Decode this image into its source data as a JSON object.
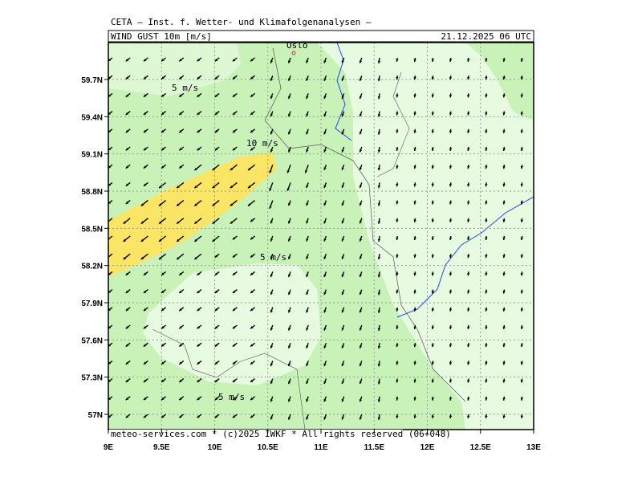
{
  "header": {
    "institute": "CETA – Inst. f. Wetter- und Klimafolgenanalysen –",
    "title": "WIND GUST 10m [m/s]",
    "datetime": "21.12.2025 06 UTC"
  },
  "map": {
    "place": "Oslo",
    "contour_labels": [
      "5 m/s",
      "10 m/s",
      "5 m/s",
      "5 m/s"
    ],
    "x_ticks": [
      "9E",
      "9.5E",
      "10E",
      "10.5E",
      "11E",
      "11.5E",
      "12E",
      "12.5E",
      "13E"
    ],
    "y_ticks": [
      "57N",
      "57.3N",
      "57.6N",
      "57.9N",
      "58.2N",
      "58.5N",
      "58.8N",
      "59.1N",
      "59.4N",
      "59.7N"
    ]
  },
  "footer": "meteo-services.com * (c)2025 IWKF * All rights reserved (06+048)"
}
